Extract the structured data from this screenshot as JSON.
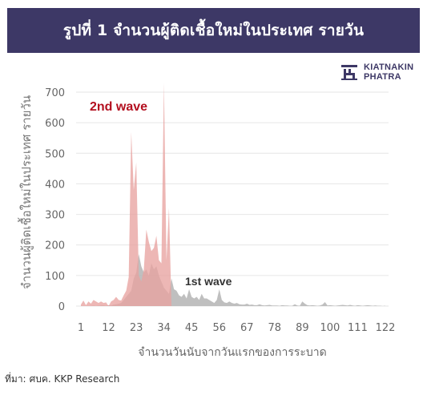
{
  "title": "รูปที่ 1 จำนวนผู้ติดเชื้อใหม่ในประเทศ รายวัน",
  "logo": {
    "line1": "KIATNAKIN",
    "line2": "PHATRA"
  },
  "source": {
    "prefix": "ที่มา:",
    "text": "ศบค. KKP Research"
  },
  "colors": {
    "title_bg": "#3d3866",
    "wave1": "#b4b4b4",
    "wave2": "#e8a3a0",
    "wave2_label": "#b30f1f",
    "wave1_label": "#333333"
  },
  "chart_data": {
    "type": "area",
    "ylabel": "จำนวนผู้ติดเชื้อใหม่ในประเทศ รายวัน",
    "xlabel": "จำนวนวันนับจากวันแรกของการระบาด",
    "ylim": [
      0,
      700
    ],
    "y_ticks": [
      0,
      100,
      200,
      300,
      400,
      500,
      600,
      700
    ],
    "xlim": [
      1,
      122
    ],
    "x_ticks": [
      1,
      12,
      23,
      34,
      45,
      56,
      67,
      78,
      89,
      100,
      111,
      122
    ],
    "grid": true,
    "annotations": [
      {
        "text": "2nd wave",
        "series": "2nd wave"
      },
      {
        "text": "1st wave",
        "series": "1st wave"
      }
    ],
    "series": [
      {
        "name": "1st wave",
        "x": [
          1,
          2,
          3,
          4,
          5,
          6,
          7,
          8,
          9,
          10,
          11,
          12,
          13,
          14,
          15,
          16,
          17,
          18,
          19,
          20,
          21,
          22,
          23,
          24,
          25,
          26,
          27,
          28,
          29,
          30,
          31,
          32,
          33,
          34,
          35,
          36,
          37,
          38,
          39,
          40,
          41,
          42,
          43,
          44,
          45,
          46,
          47,
          48,
          49,
          50,
          51,
          52,
          53,
          54,
          55,
          56,
          57,
          58,
          59,
          60,
          61,
          62,
          63,
          64,
          65,
          66,
          67,
          68,
          69,
          70,
          71,
          72,
          73,
          74,
          75,
          76,
          77,
          78,
          79,
          80,
          81,
          82,
          83,
          84,
          85,
          86,
          87,
          88,
          89,
          90,
          91,
          92,
          93,
          94,
          95,
          96,
          97,
          98,
          99,
          100,
          101,
          102,
          103,
          104,
          105,
          106,
          107,
          108,
          109,
          110,
          111,
          112,
          113,
          114,
          115,
          116,
          117,
          118,
          119,
          120,
          121,
          122
        ],
        "values": [
          0,
          0,
          0,
          0,
          0,
          1,
          0,
          1,
          2,
          2,
          1,
          3,
          2,
          5,
          6,
          8,
          10,
          20,
          30,
          40,
          50,
          90,
          110,
          170,
          130,
          110,
          120,
          100,
          140,
          120,
          130,
          100,
          80,
          60,
          50,
          40,
          90,
          55,
          50,
          35,
          30,
          40,
          25,
          55,
          30,
          25,
          30,
          20,
          40,
          25,
          25,
          20,
          15,
          10,
          20,
          55,
          20,
          12,
          10,
          15,
          10,
          8,
          10,
          6,
          5,
          5,
          8,
          4,
          5,
          3,
          3,
          6,
          3,
          2,
          3,
          4,
          2,
          2,
          2,
          1,
          3,
          2,
          2,
          1,
          1,
          6,
          2,
          1,
          15,
          8,
          3,
          2,
          3,
          2,
          1,
          2,
          5,
          13,
          2,
          3,
          2,
          1,
          2,
          3,
          4,
          3,
          2,
          4,
          2,
          1,
          3,
          2,
          1,
          2,
          3,
          2,
          1,
          2,
          1,
          1,
          0,
          1
        ]
      },
      {
        "name": "2nd wave",
        "x": [
          1,
          2,
          3,
          4,
          5,
          6,
          7,
          8,
          9,
          10,
          11,
          12,
          13,
          14,
          15,
          16,
          17,
          18,
          19,
          20,
          21,
          22,
          23,
          24,
          25,
          26,
          27,
          28,
          29,
          30,
          31,
          32,
          33,
          34,
          35,
          36,
          37
        ],
        "values": [
          5,
          18,
          3,
          15,
          8,
          20,
          15,
          10,
          15,
          10,
          12,
          0,
          15,
          20,
          30,
          20,
          18,
          35,
          50,
          95,
          570,
          380,
          470,
          100,
          80,
          120,
          250,
          210,
          180,
          190,
          230,
          150,
          140,
          730,
          150,
          320,
          0
        ]
      }
    ]
  }
}
